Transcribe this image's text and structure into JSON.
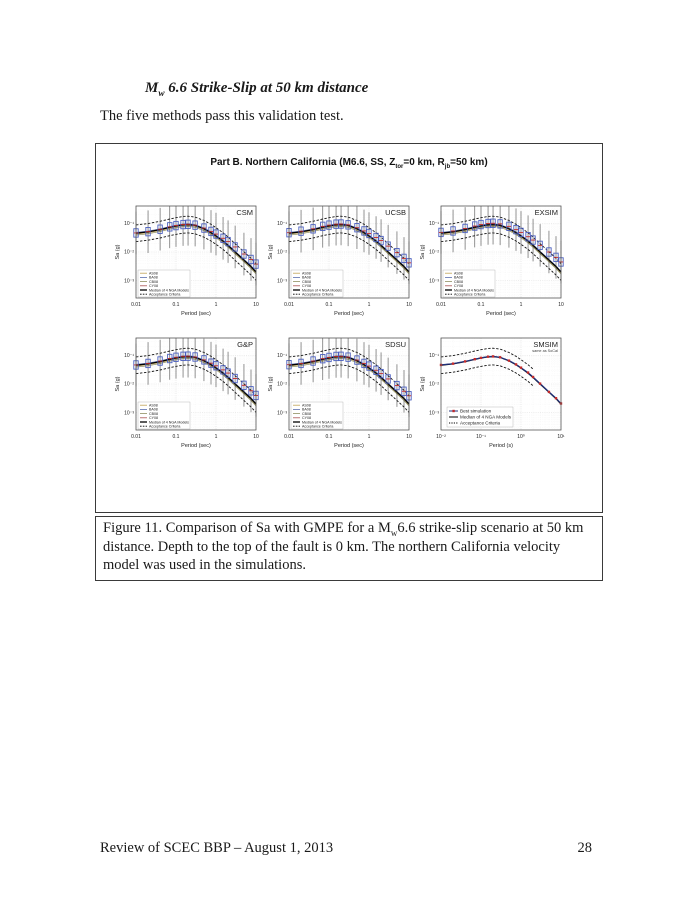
{
  "page": {
    "heading_m": "M",
    "heading_sub": "w",
    "heading_rest": " 6.6 Strike-Slip at 50 km distance",
    "intro": "The five methods pass this validation test.",
    "footer_left": "Review of SCEC BBP – August 1, 2013",
    "footer_page": "28"
  },
  "figure": {
    "title_parts": {
      "t1": "Part B. Northern California (M6.6, SS, Z",
      "s1": "tor",
      "t2": "=0 km, R",
      "s2": "jb",
      "t3": "=50 km)"
    },
    "caption_parts": {
      "c1": "Figure 11. Comparison of Sa with GMPE for a M",
      "csub": "w",
      "c2": "6.6 strike-slip scenario at 50 km distance. Depth to the top of the fault is 0 km. The northern California velocity model was used in the simulations."
    }
  },
  "chart_data": {
    "type": "multi-panel",
    "description": "Six log-log spectral acceleration plots: five box-plot comparison panels (CSM, UCSB, EXSIM, G&P, SDSU) and one line panel (SMSIM)",
    "shared": {
      "periods": [
        0.01,
        0.02,
        0.04,
        0.07,
        0.1,
        0.15,
        0.2,
        0.3,
        0.5,
        0.75,
        1,
        1.5,
        2,
        3,
        5,
        7.5,
        10
      ],
      "gmpe_median": [
        0.045,
        0.05,
        0.06,
        0.072,
        0.08,
        0.088,
        0.09,
        0.084,
        0.064,
        0.047,
        0.036,
        0.024,
        0.017,
        0.01,
        0.0052,
        0.0031,
        0.002
      ],
      "acceptance_factor": 1.95,
      "nga_models": [
        {
          "name": "AS08",
          "color": "#c0a455",
          "factor": 0.93
        },
        {
          "name": "BA08",
          "color": "#5b6fae",
          "factor": 1.07
        },
        {
          "name": "CB08",
          "color": "#8f8f62",
          "factor": 0.86
        },
        {
          "name": "CY08",
          "color": "#a85050",
          "factor": 1.0
        }
      ],
      "box_legend": [
        "AS08",
        "BA08",
        "CB08",
        "CY08",
        "Median of 4 NGA Models",
        "Acceptance Criteria"
      ],
      "axes": {
        "xlabel_box": "Period (sec)",
        "xlabel_smsim": "Period (s)",
        "ylabel": "Sa (g)",
        "x_ticks_box": [
          "0.01",
          "0.1",
          "1",
          "10"
        ],
        "x_ticks_smsim": [
          "10⁻²",
          "10⁻¹",
          "10⁰",
          "10¹"
        ],
        "y_ticks": [
          "10⁻¹",
          "10⁻²",
          "10⁻³"
        ],
        "xlim": [
          0.01,
          10
        ],
        "ylim": [
          0.00025,
          0.4
        ]
      },
      "box_style": {
        "box_factor": 1.4,
        "whisker_factor": 5.5,
        "box_color": "#4a5fc0",
        "median_color": "#c42a2a",
        "whisker_color": "#3a3a3a"
      },
      "line_style": {
        "sim_color": "#20317e",
        "marker_color": "#c42a2a"
      }
    },
    "panels": [
      {
        "name": "CSM",
        "type": "box",
        "sim": [
          0.046,
          0.051,
          0.062,
          0.075,
          0.083,
          0.09,
          0.092,
          0.086,
          0.068,
          0.052,
          0.042,
          0.03,
          0.023,
          0.015,
          0.0085,
          0.0055,
          0.0038
        ]
      },
      {
        "name": "UCSB",
        "type": "box",
        "sim": [
          0.047,
          0.053,
          0.064,
          0.078,
          0.086,
          0.093,
          0.094,
          0.088,
          0.07,
          0.054,
          0.044,
          0.032,
          0.025,
          0.016,
          0.0095,
          0.006,
          0.0042
        ]
      },
      {
        "name": "EXSIM",
        "type": "box",
        "sim": [
          0.048,
          0.054,
          0.066,
          0.08,
          0.09,
          0.098,
          0.1,
          0.095,
          0.078,
          0.06,
          0.048,
          0.034,
          0.026,
          0.017,
          0.01,
          0.0065,
          0.0045
        ]
      },
      {
        "name": "G&P",
        "type": "box",
        "sim": [
          0.046,
          0.052,
          0.063,
          0.077,
          0.085,
          0.092,
          0.093,
          0.087,
          0.069,
          0.053,
          0.043,
          0.031,
          0.024,
          0.0155,
          0.009,
          0.0058,
          0.004
        ]
      },
      {
        "name": "SDSU",
        "type": "box",
        "sim": [
          0.047,
          0.052,
          0.063,
          0.076,
          0.084,
          0.091,
          0.092,
          0.086,
          0.068,
          0.052,
          0.042,
          0.03,
          0.023,
          0.015,
          0.0088,
          0.0056,
          0.0039
        ]
      },
      {
        "name": "SMSIM",
        "type": "line",
        "subtitle": "same as SoCal",
        "criteria_max_period": 2,
        "sim": [
          0.046,
          0.051,
          0.061,
          0.073,
          0.081,
          0.089,
          0.091,
          0.085,
          0.065,
          0.048,
          0.037,
          0.025,
          0.0175,
          0.0103,
          0.0053,
          0.0032,
          0.0021
        ],
        "legend": [
          "Best simulation",
          "Median of 4 NGA Models",
          "Acceptance Criteria"
        ]
      }
    ]
  }
}
